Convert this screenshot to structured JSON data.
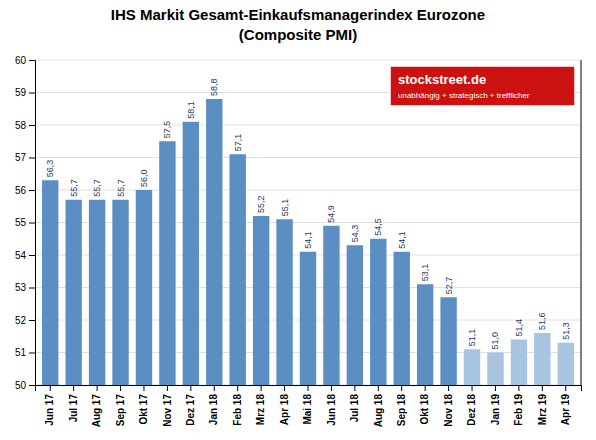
{
  "chart_data": {
    "type": "bar",
    "title": "IHS Markit Gesamt-Einkaufsmanagerindex Eurozone",
    "subtitle": "(Composite PMI)",
    "categories": [
      "Jun 17",
      "Jul 17",
      "Aug 17",
      "Sep 17",
      "Okt 17",
      "Nov 17",
      "Dez 17",
      "Jan 18",
      "Feb 18",
      "Mrz 18",
      "Apr 18",
      "Mai 18",
      "Jun 18",
      "Jul 18",
      "Aug 18",
      "Sep 18",
      "Okt 18",
      "Nov 18",
      "Dez 18",
      "Jan 19",
      "Feb 19",
      "Mrz 19",
      "Apr 19"
    ],
    "values": [
      56.3,
      55.7,
      55.7,
      55.7,
      56.0,
      57.5,
      58.1,
      58.8,
      57.1,
      55.2,
      55.1,
      54.1,
      54.9,
      54.3,
      54.5,
      54.1,
      53.1,
      52.7,
      51.1,
      51.0,
      51.4,
      51.6,
      51.3
    ],
    "value_labels": [
      "56,3",
      "55,7",
      "55,7",
      "55,7",
      "56,0",
      "57,5",
      "58,1",
      "58,8",
      "57,1",
      "55,2",
      "55,1",
      "54,1",
      "54,9",
      "54,3",
      "54,5",
      "54,1",
      "53,1",
      "52,7",
      "51,1",
      "51,0",
      "51,4",
      "51,6",
      "51,3"
    ],
    "colors": [
      "#5B8FC4",
      "#5B8FC4",
      "#5B8FC4",
      "#5B8FC4",
      "#5B8FC4",
      "#5B8FC4",
      "#5B8FC4",
      "#5B8FC4",
      "#5B8FC4",
      "#5B8FC4",
      "#5B8FC4",
      "#5B8FC4",
      "#5B8FC4",
      "#5B8FC4",
      "#5B8FC4",
      "#5B8FC4",
      "#5B8FC4",
      "#5B8FC4",
      "#A8C4E0",
      "#A8C4E0",
      "#A8C4E0",
      "#A8C4E0",
      "#A8C4E0"
    ],
    "ylim": [
      50,
      60
    ],
    "yticks": [
      50,
      51,
      52,
      53,
      54,
      55,
      56,
      57,
      58,
      59,
      60
    ],
    "grid": true,
    "data_labels": true,
    "annotations": [
      "stockstreet.de",
      "unabhängig + strategisch + trefflicher"
    ]
  }
}
